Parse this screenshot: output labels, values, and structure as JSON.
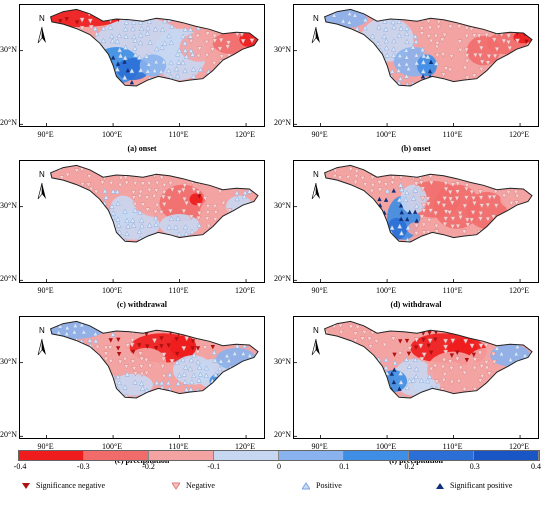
{
  "panels": [
    {
      "id": "a",
      "title": "(a) onset"
    },
    {
      "id": "b",
      "title": "(b) onset"
    },
    {
      "id": "c",
      "title": "(c) withdrawal"
    },
    {
      "id": "d",
      "title": "(d) withdrawal"
    },
    {
      "id": "e",
      "title": "(e) precipitation"
    },
    {
      "id": "f",
      "title": "(f) precipitation"
    }
  ],
  "axis": {
    "lat_labels": [
      "30°N",
      "20°N"
    ],
    "lon_labels": [
      "90°E",
      "100°E",
      "110°E",
      "120°E"
    ]
  },
  "north_label": "N",
  "colorbar": {
    "ticks": [
      "-0.4",
      "-0.3",
      "-0.2",
      "-0.1",
      "0",
      "0.1",
      "0.2",
      "0.3",
      "0.4"
    ],
    "colors": [
      "#ee1c1c",
      "#f26b6b",
      "#f4a3a3",
      "#c7d7f2",
      "#8ab2ee",
      "#3d8ee4",
      "#2b6fd6",
      "#1a55c6"
    ]
  },
  "legend": [
    {
      "label": "Significance  negative",
      "icon": "filled-down-triangle",
      "color": "#b01010"
    },
    {
      "label": "Negative",
      "icon": "open-down-triangle",
      "color": "#e07a7a"
    },
    {
      "label": "Positive",
      "icon": "open-up-triangle",
      "color": "#7aa4e0"
    },
    {
      "label": "Significant  positive",
      "icon": "filled-up-triangle",
      "color": "#10307a"
    }
  ]
}
